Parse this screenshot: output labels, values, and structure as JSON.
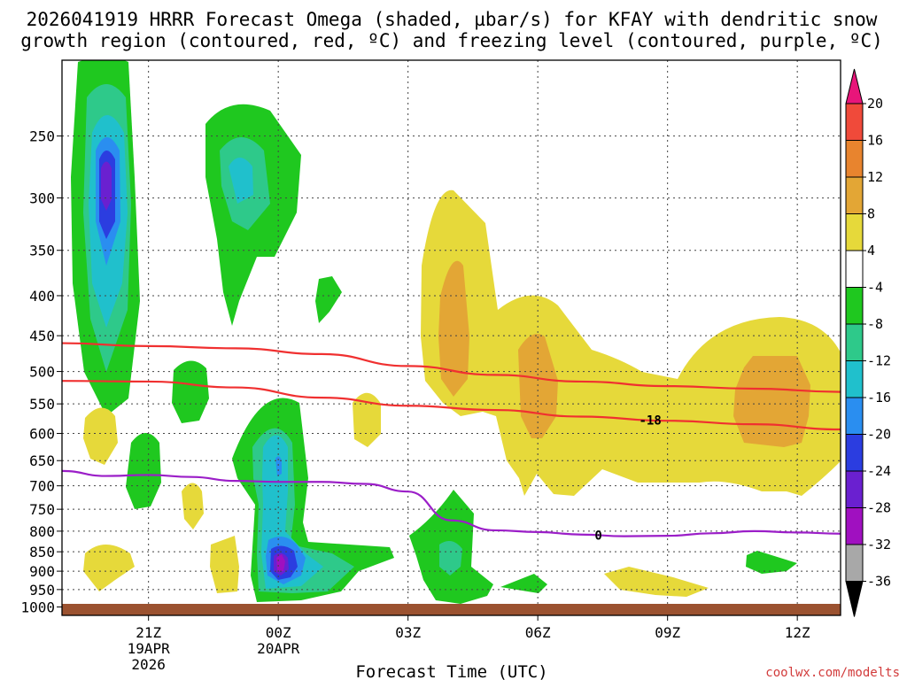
{
  "title_line1": "2026041919 HRRR Forecast Omega (shaded, µbar/s) for KFAY with dendritic snow",
  "title_line2": "growth region (contoured, red, ºC) and freezing level (contoured, purple, ºC)",
  "credit": "coolwx.com/modelts",
  "chart_data": {
    "type": "heatmap",
    "title": "2026041919 HRRR Forecast Omega (shaded, µbar/s) for KFAY with dendritic snow growth region (contoured, red, ºC) and freezing level (contoured, purple, ºC)",
    "xlabel": "Forecast Time (UTC)",
    "ylabel": "",
    "x_unit": "forecast hours from 2026041919 (19Z 19APR 2026)",
    "xlim": [
      0,
      18
    ],
    "ylim": [
      1025,
      200
    ],
    "y_scale": "log (pressure, hPa)",
    "y_ticks": [
      250,
      300,
      350,
      400,
      450,
      500,
      550,
      600,
      650,
      700,
      750,
      800,
      850,
      900,
      950,
      1000
    ],
    "x_ticks": [
      {
        "hour": 2,
        "label": "21Z",
        "date": "19APR",
        "year": "2026"
      },
      {
        "hour": 5,
        "label": "00Z",
        "date": "20APR",
        "year": ""
      },
      {
        "hour": 8,
        "label": "03Z",
        "date": "",
        "year": ""
      },
      {
        "hour": 11,
        "label": "06Z",
        "date": "",
        "year": ""
      },
      {
        "hour": 14,
        "label": "09Z",
        "date": "",
        "year": ""
      },
      {
        "hour": 17,
        "label": "12Z",
        "date": "",
        "year": ""
      }
    ],
    "colorbar": {
      "unit": "µbar/s",
      "labels": [
        "20",
        "16",
        "12",
        "8",
        "4",
        "-4",
        "-8",
        "-12",
        "-16",
        "-20",
        "-24",
        "-28",
        "-32",
        "-36"
      ],
      "bins": [
        {
          "color": "#e8157a"
        },
        {
          "color": "#f04a3a"
        },
        {
          "color": "#e8842e"
        },
        {
          "color": "#e3a635"
        },
        {
          "color": "#e6d93a"
        },
        {
          "color": "#ffffff"
        },
        {
          "color": "#1fc81f"
        },
        {
          "color": "#2ec98a"
        },
        {
          "color": "#20c0cc"
        },
        {
          "color": "#2a8ef0"
        },
        {
          "color": "#2b3de0"
        },
        {
          "color": "#6a20d0"
        },
        {
          "color": "#a010c0"
        },
        {
          "color": "#a8a8a8"
        },
        {
          "color": "#000000"
        }
      ]
    },
    "omega_regions": [
      {
        "name": "early-deep-ascent",
        "hour": 1.0,
        "plevel": 300,
        "min_value": -32,
        "pbot": 470,
        "ptop": 200
      },
      {
        "name": "upper-ascent-2",
        "hour": 4.0,
        "plevel": 290,
        "min_value": -12,
        "pbot": 450,
        "ptop": 240
      },
      {
        "name": "low-level-ascent",
        "hour": 5.0,
        "plevel": 920,
        "min_value": -32,
        "pbot": 1000,
        "ptop": 540
      },
      {
        "name": "descent-plume-1",
        "hour": 8.8,
        "plevel": 450,
        "min_value": 12,
        "pbot": 800,
        "ptop": 300
      },
      {
        "name": "descent-plume-2",
        "hour": 11.0,
        "plevel": 550,
        "min_value": 12,
        "pbot": 740,
        "ptop": 400
      },
      {
        "name": "descent-plume-3",
        "hour": 16.2,
        "plevel": 580,
        "min_value": 12,
        "pbot": 740,
        "ptop": 440
      },
      {
        "name": "low-ascent-4z",
        "hour": 9.0,
        "plevel": 900,
        "min_value": -8,
        "pbot": 990,
        "ptop": 760
      }
    ],
    "contours": [
      {
        "name": "dgz-upper",
        "color": "#f03030",
        "value": -12,
        "label": "",
        "x": [
          0,
          2,
          4,
          6,
          8,
          10,
          12,
          14,
          16,
          18
        ],
        "y": [
          460,
          464,
          467,
          475,
          492,
          505,
          515,
          522,
          526,
          531
        ]
      },
      {
        "name": "dgz-lower",
        "color": "#f03030",
        "value": -18,
        "label": "-18",
        "x": [
          0,
          2,
          4,
          6,
          8,
          10,
          12,
          14,
          16,
          18
        ],
        "y": [
          514,
          515,
          524,
          540,
          553,
          560,
          571,
          578,
          584,
          593
        ]
      },
      {
        "name": "freezing-level",
        "color": "#9b1ec8",
        "value": 0,
        "label": "0",
        "x": [
          0,
          1,
          2,
          3,
          4,
          5,
          6,
          7,
          8,
          9,
          10,
          11,
          12,
          13,
          14,
          15,
          16,
          17,
          18
        ],
        "y": [
          670,
          680,
          678,
          682,
          690,
          692,
          692,
          696,
          712,
          775,
          798,
          802,
          808,
          812,
          811,
          805,
          800,
          803,
          806
        ]
      }
    ],
    "ground": {
      "label": "terrain",
      "plevel_top": 1010,
      "color": "#9b5230"
    }
  }
}
